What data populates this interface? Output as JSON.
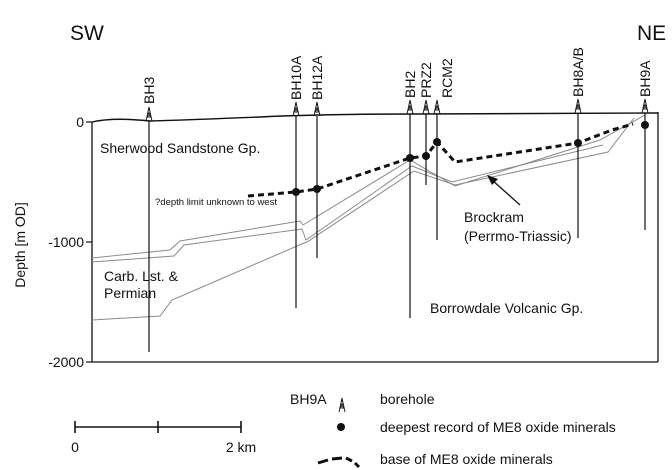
{
  "orientation": {
    "left": "SW",
    "right": "NE"
  },
  "axis": {
    "label": "Depth [m OD]",
    "ticks": [
      "0",
      "-1000",
      "-2000"
    ]
  },
  "boreholes": [
    {
      "name": "BH3"
    },
    {
      "name": "BH10A"
    },
    {
      "name": "BH12A"
    },
    {
      "name": "BH2"
    },
    {
      "name": "PRZ2"
    },
    {
      "name": "RCM2"
    },
    {
      "name": "BH8A/B"
    },
    {
      "name": "BH9A"
    }
  ],
  "units": {
    "sherwood": "Sherwood Sandstone Gp.",
    "depth_note": "?depth limit unknown to west",
    "brockram_1": "Brockram",
    "brockram_2": "(Perrmo-Triassic)",
    "carb_1": "Carb. Lst. &",
    "carb_2": "Permian",
    "borrowdale": "Borrowdale Volcanic Gp."
  },
  "legend": {
    "borehole_symbol_label": "BH9A",
    "borehole": "borehole",
    "deepest": "deepest record of ME8 oxide minerals",
    "base": "base of ME8 oxide minerals"
  },
  "scale": {
    "start": "0",
    "end": "2 km"
  },
  "colors": {
    "ink": "#111111",
    "contact": "#8a8a8a"
  }
}
